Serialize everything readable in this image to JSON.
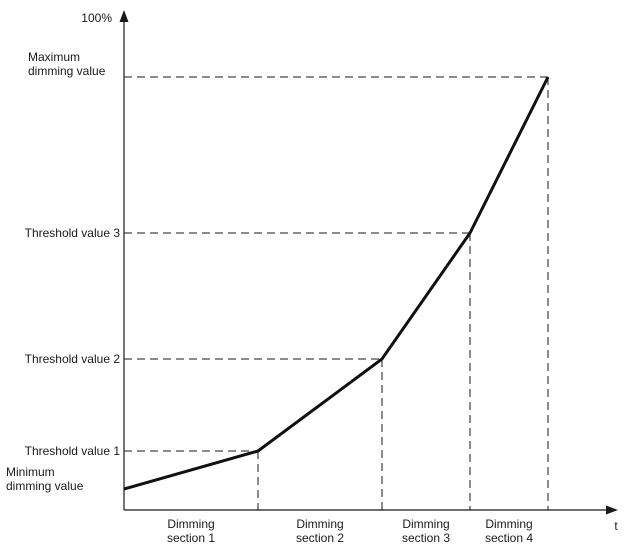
{
  "chart_data": {
    "type": "line",
    "title": "",
    "xlabel": "t",
    "y_top_label": "100%",
    "y_levels": [
      {
        "key": "min",
        "label": [
          "Minimum",
          "dimming value"
        ],
        "value": 0
      },
      {
        "key": "t1",
        "label": [
          "Threshold value 1"
        ],
        "value": 1
      },
      {
        "key": "t2",
        "label": [
          "Threshold value 2"
        ],
        "value": 2
      },
      {
        "key": "t3",
        "label": [
          "Threshold value 3"
        ],
        "value": 3
      },
      {
        "key": "max",
        "label": [
          "Maximum",
          "dimming value"
        ],
        "value": 4
      }
    ],
    "sections": [
      {
        "label": [
          "Dimming",
          "section 1"
        ],
        "start": 0,
        "end": 1
      },
      {
        "label": [
          "Dimming",
          "section 2"
        ],
        "start": 1,
        "end": 2
      },
      {
        "label": [
          "Dimming",
          "section 3"
        ],
        "start": 2,
        "end": 3
      },
      {
        "label": [
          "Dimming",
          "section 4"
        ],
        "start": 3,
        "end": 4
      }
    ],
    "series": [
      {
        "x": [
          0,
          1,
          2,
          3,
          4
        ],
        "y": [
          0,
          1,
          2,
          3,
          4
        ]
      }
    ],
    "colors": {
      "curve": "#111111",
      "axis": "#1a1a1a",
      "text": "#1a1a1a"
    }
  }
}
